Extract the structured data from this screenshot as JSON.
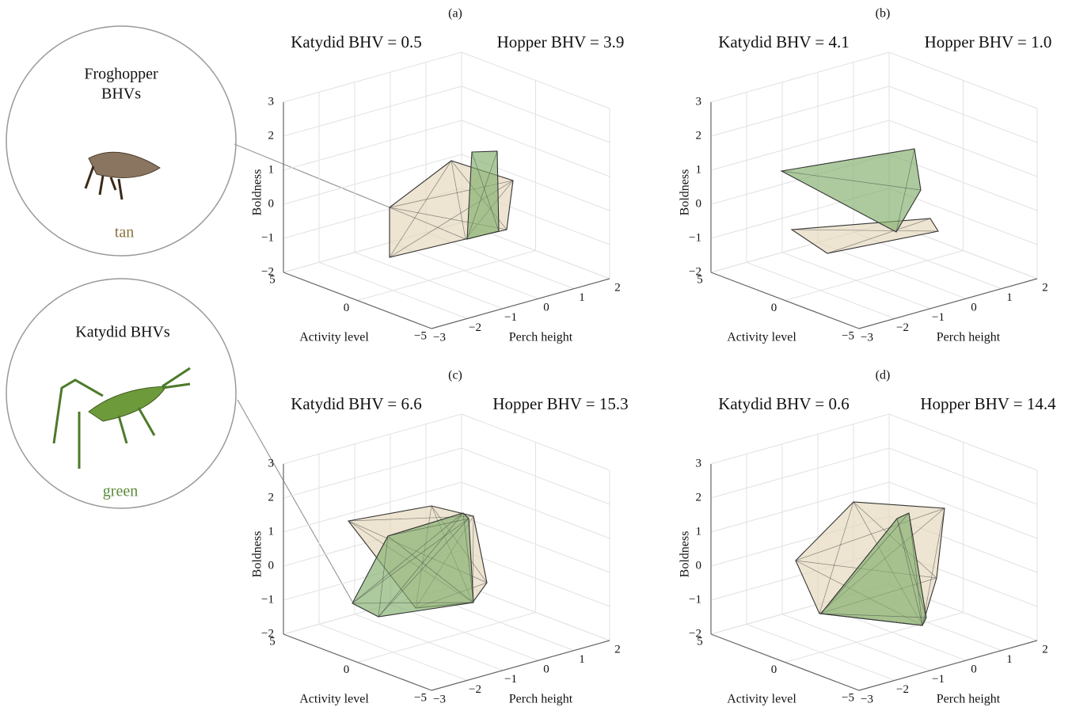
{
  "legend": {
    "froghopper": {
      "title": [
        "Froghopper",
        "BHVs"
      ],
      "color_word": "tan"
    },
    "katydid": {
      "title": [
        "Katydid BHVs"
      ],
      "color_word": "green"
    }
  },
  "axes": {
    "z_label": "Boldness",
    "x_label": "Activity level",
    "y_label": "Perch height",
    "zticks": [
      {
        "value": -2,
        "label": "−2"
      },
      {
        "value": -1,
        "label": "−1"
      },
      0,
      1,
      2,
      3
    ],
    "xticks": [
      5,
      0,
      {
        "value": -5,
        "label": "−5"
      }
    ],
    "yticks": [
      {
        "value": -3,
        "label": "−3"
      },
      {
        "value": -2,
        "label": "−2"
      },
      {
        "value": -1,
        "label": "−1"
      },
      0,
      1,
      2
    ]
  },
  "panels": [
    {
      "label": "(a)",
      "katydid": "Katydid BHV = 0.5",
      "hopper": "Hopper BHV = 3.9"
    },
    {
      "label": "(b)",
      "katydid": "Katydid BHV = 4.1",
      "hopper": "Hopper BHV = 1.0"
    },
    {
      "label": "(c)",
      "katydid": "Katydid BHV = 6.6",
      "hopper": "Hopper BHV = 15.3"
    },
    {
      "label": "(d)",
      "katydid": "Katydid BHV = 0.6",
      "hopper": "Hopper BHV = 14.4"
    }
  ]
}
